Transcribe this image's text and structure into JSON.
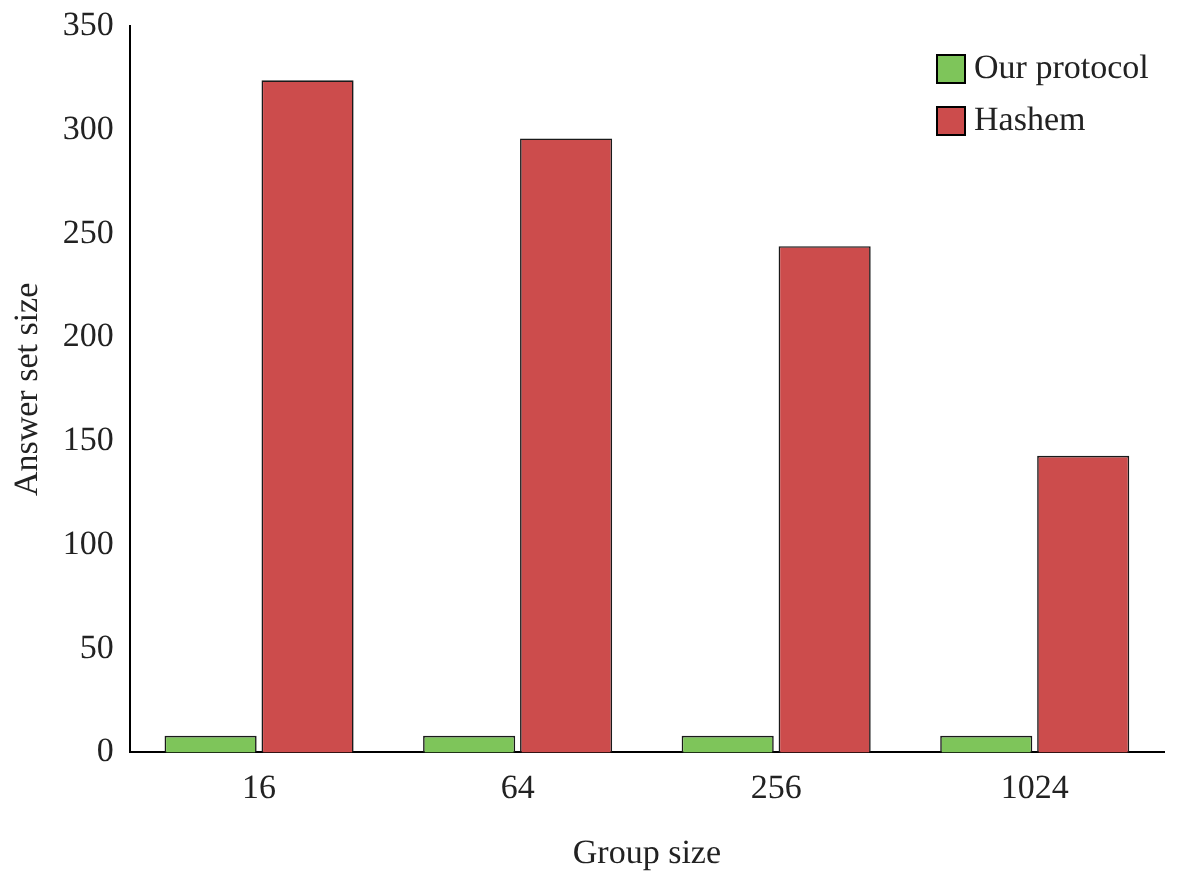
{
  "chart_data": {
    "type": "bar",
    "xlabel": "Group size",
    "ylabel": "Answer set size",
    "categories": [
      "16",
      "64",
      "256",
      "1024"
    ],
    "series": [
      {
        "name": "Our protocol",
        "color": "#7ec55a",
        "values": [
          8,
          8,
          8,
          8
        ]
      },
      {
        "name": "Hashem",
        "color": "#cc4c4c",
        "values": [
          324,
          296,
          244,
          143
        ]
      }
    ],
    "ylim": [
      0,
      350
    ],
    "yticks": [
      0,
      50,
      100,
      150,
      200,
      250,
      300,
      350
    ],
    "grid": false,
    "legend": "top right"
  }
}
